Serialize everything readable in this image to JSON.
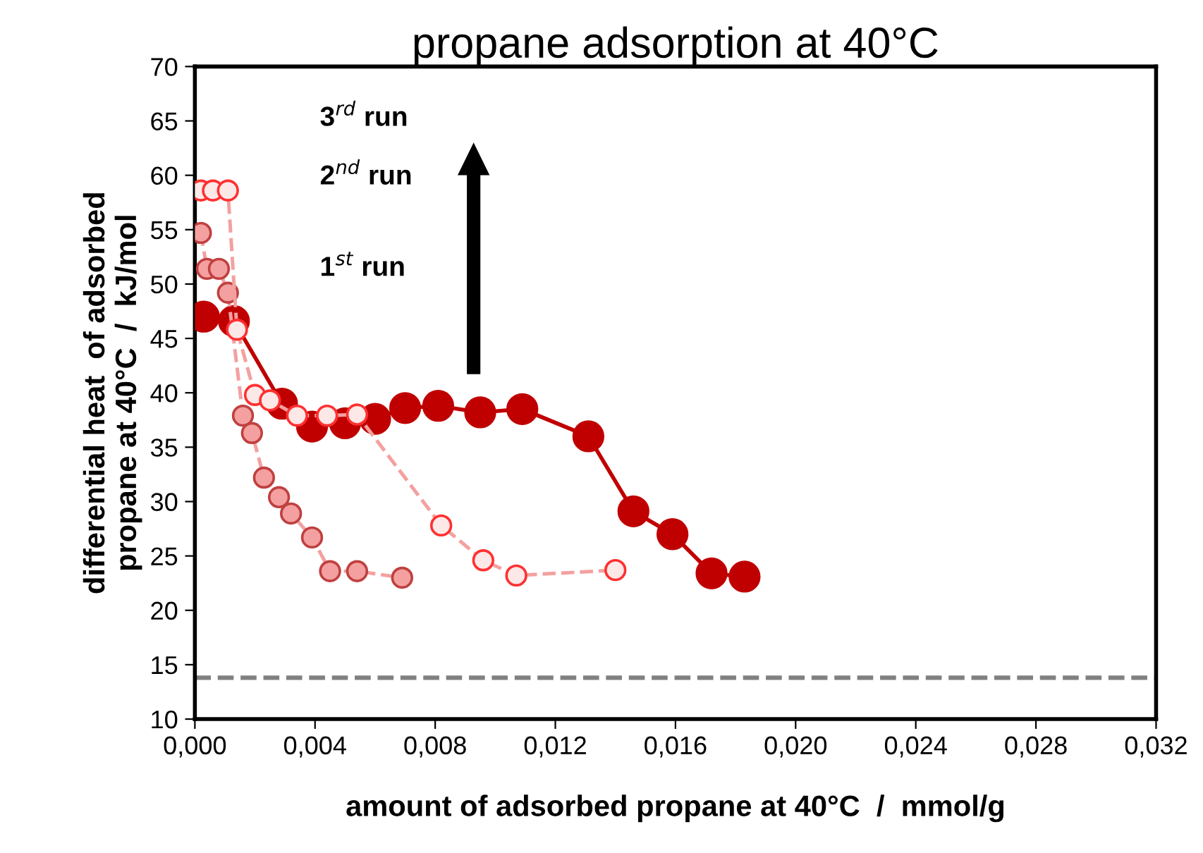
{
  "chart_data": {
    "type": "line",
    "title": "propane adsorption at 40°C",
    "xlabel": "amount of adsorbed propane at 40°C  /  mmol/g",
    "ylabel": "differential heat  of adsorbed\npropane at 40°C  /  kJ/mol",
    "marker": "circle",
    "grid": false,
    "legend": false,
    "xlim": [
      0,
      0.032
    ],
    "ylim": [
      10,
      70
    ],
    "xticks": [
      {
        "value": 0,
        "label": "0,000"
      },
      {
        "value": 0.004,
        "label": "0,004"
      },
      {
        "value": 0.008,
        "label": "0,008"
      },
      {
        "value": 0.012,
        "label": "0,012"
      },
      {
        "value": 0.016,
        "label": "0,016"
      },
      {
        "value": 0.02,
        "label": "0,020"
      },
      {
        "value": 0.024,
        "label": "0,024"
      },
      {
        "value": 0.028,
        "label": "0,028"
      },
      {
        "value": 0.032,
        "label": "0,032"
      }
    ],
    "yticks": [
      10,
      15,
      20,
      25,
      30,
      35,
      40,
      45,
      50,
      55,
      60,
      65,
      70
    ],
    "series": [
      {
        "color": "#c00000",
        "line_style": "solid",
        "x": [
          0.0003,
          0.0013,
          0.0029,
          0.0039,
          0.005,
          0.006,
          0.007,
          0.0081,
          0.0095,
          0.0109,
          0.0131,
          0.0146,
          0.0159,
          0.0172,
          0.0183
        ],
        "values": [
          47.0,
          46.6,
          39.0,
          36.9,
          37.2,
          37.6,
          38.6,
          38.8,
          38.2,
          38.5,
          36.0,
          29.1,
          27.0,
          23.4,
          23.1
        ]
      },
      {
        "color": "#f4a0a0",
        "line_style": "dashed",
        "x": [
          0.0002,
          0.0004,
          0.0008,
          0.0011,
          0.0016,
          0.0019,
          0.0023,
          0.0028,
          0.0032,
          0.0039,
          0.0045,
          0.0054,
          0.0069
        ],
        "values": [
          54.7,
          51.4,
          51.4,
          49.2,
          37.9,
          36.3,
          32.2,
          30.4,
          28.9,
          26.7,
          23.6,
          23.6,
          23.0
        ]
      },
      {
        "color": "#fde8e8",
        "line_style": "dashed",
        "x": [
          0.0002,
          0.0006,
          0.0011,
          0.0014,
          0.002,
          0.0025,
          0.0034,
          0.0044,
          0.0054,
          0.0082,
          0.0096,
          0.0107,
          0.014
        ],
        "values": [
          58.6,
          58.6,
          58.6,
          45.8,
          39.8,
          39.3,
          37.9,
          37.9,
          38.0,
          27.8,
          24.6,
          23.2,
          23.7
        ]
      }
    ],
    "ref_lines": [
      {
        "axis": "y",
        "value": 13.8,
        "color": "#808080",
        "line_style": "dashed"
      }
    ],
    "annotations": [
      "3$^{rd}$ run",
      "2$^{nd}$ run",
      "1$^{st}$ run"
    ]
  }
}
